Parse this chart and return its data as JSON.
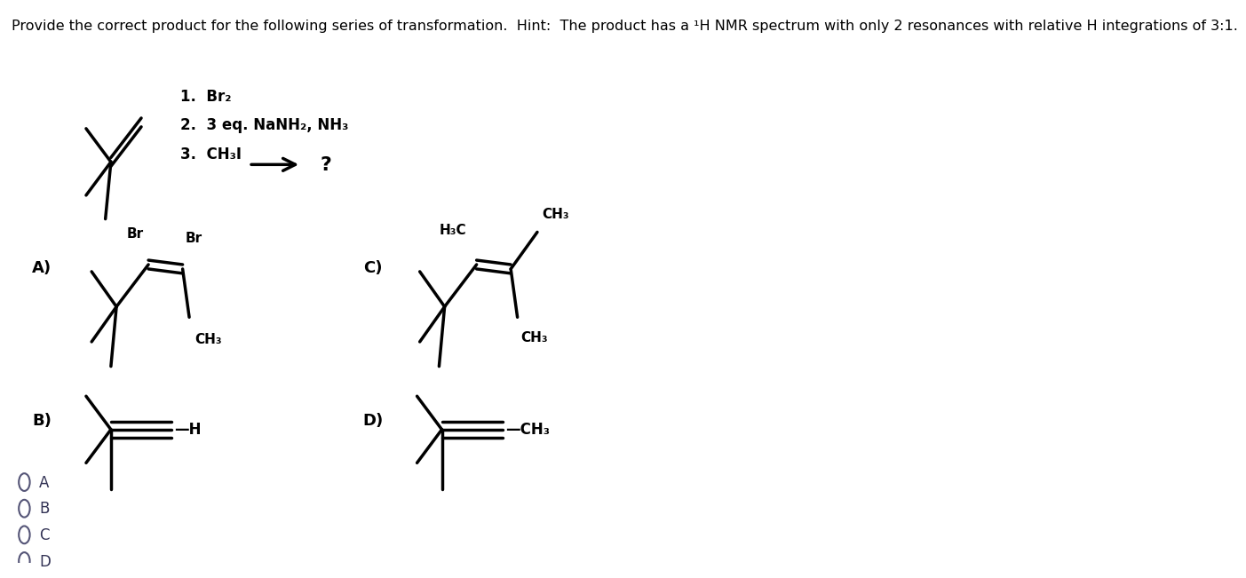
{
  "title": "Provide the correct product for the following series of transformation.  Hint:  The product has a ¹H NMR spectrum with only 2 resonances with relative H integrations of 3:1.",
  "steps": [
    "1.  Br₂",
    "2.  3 eq. NaNH₂, NH₃",
    "3.  CH₃I"
  ],
  "question_mark": "?",
  "bg_color": "#ffffff",
  "text_color": "#000000",
  "font_size_title": 11.5,
  "font_size_label": 13,
  "font_size_steps": 12,
  "font_size_chem": 11,
  "font_size_sub": 10
}
